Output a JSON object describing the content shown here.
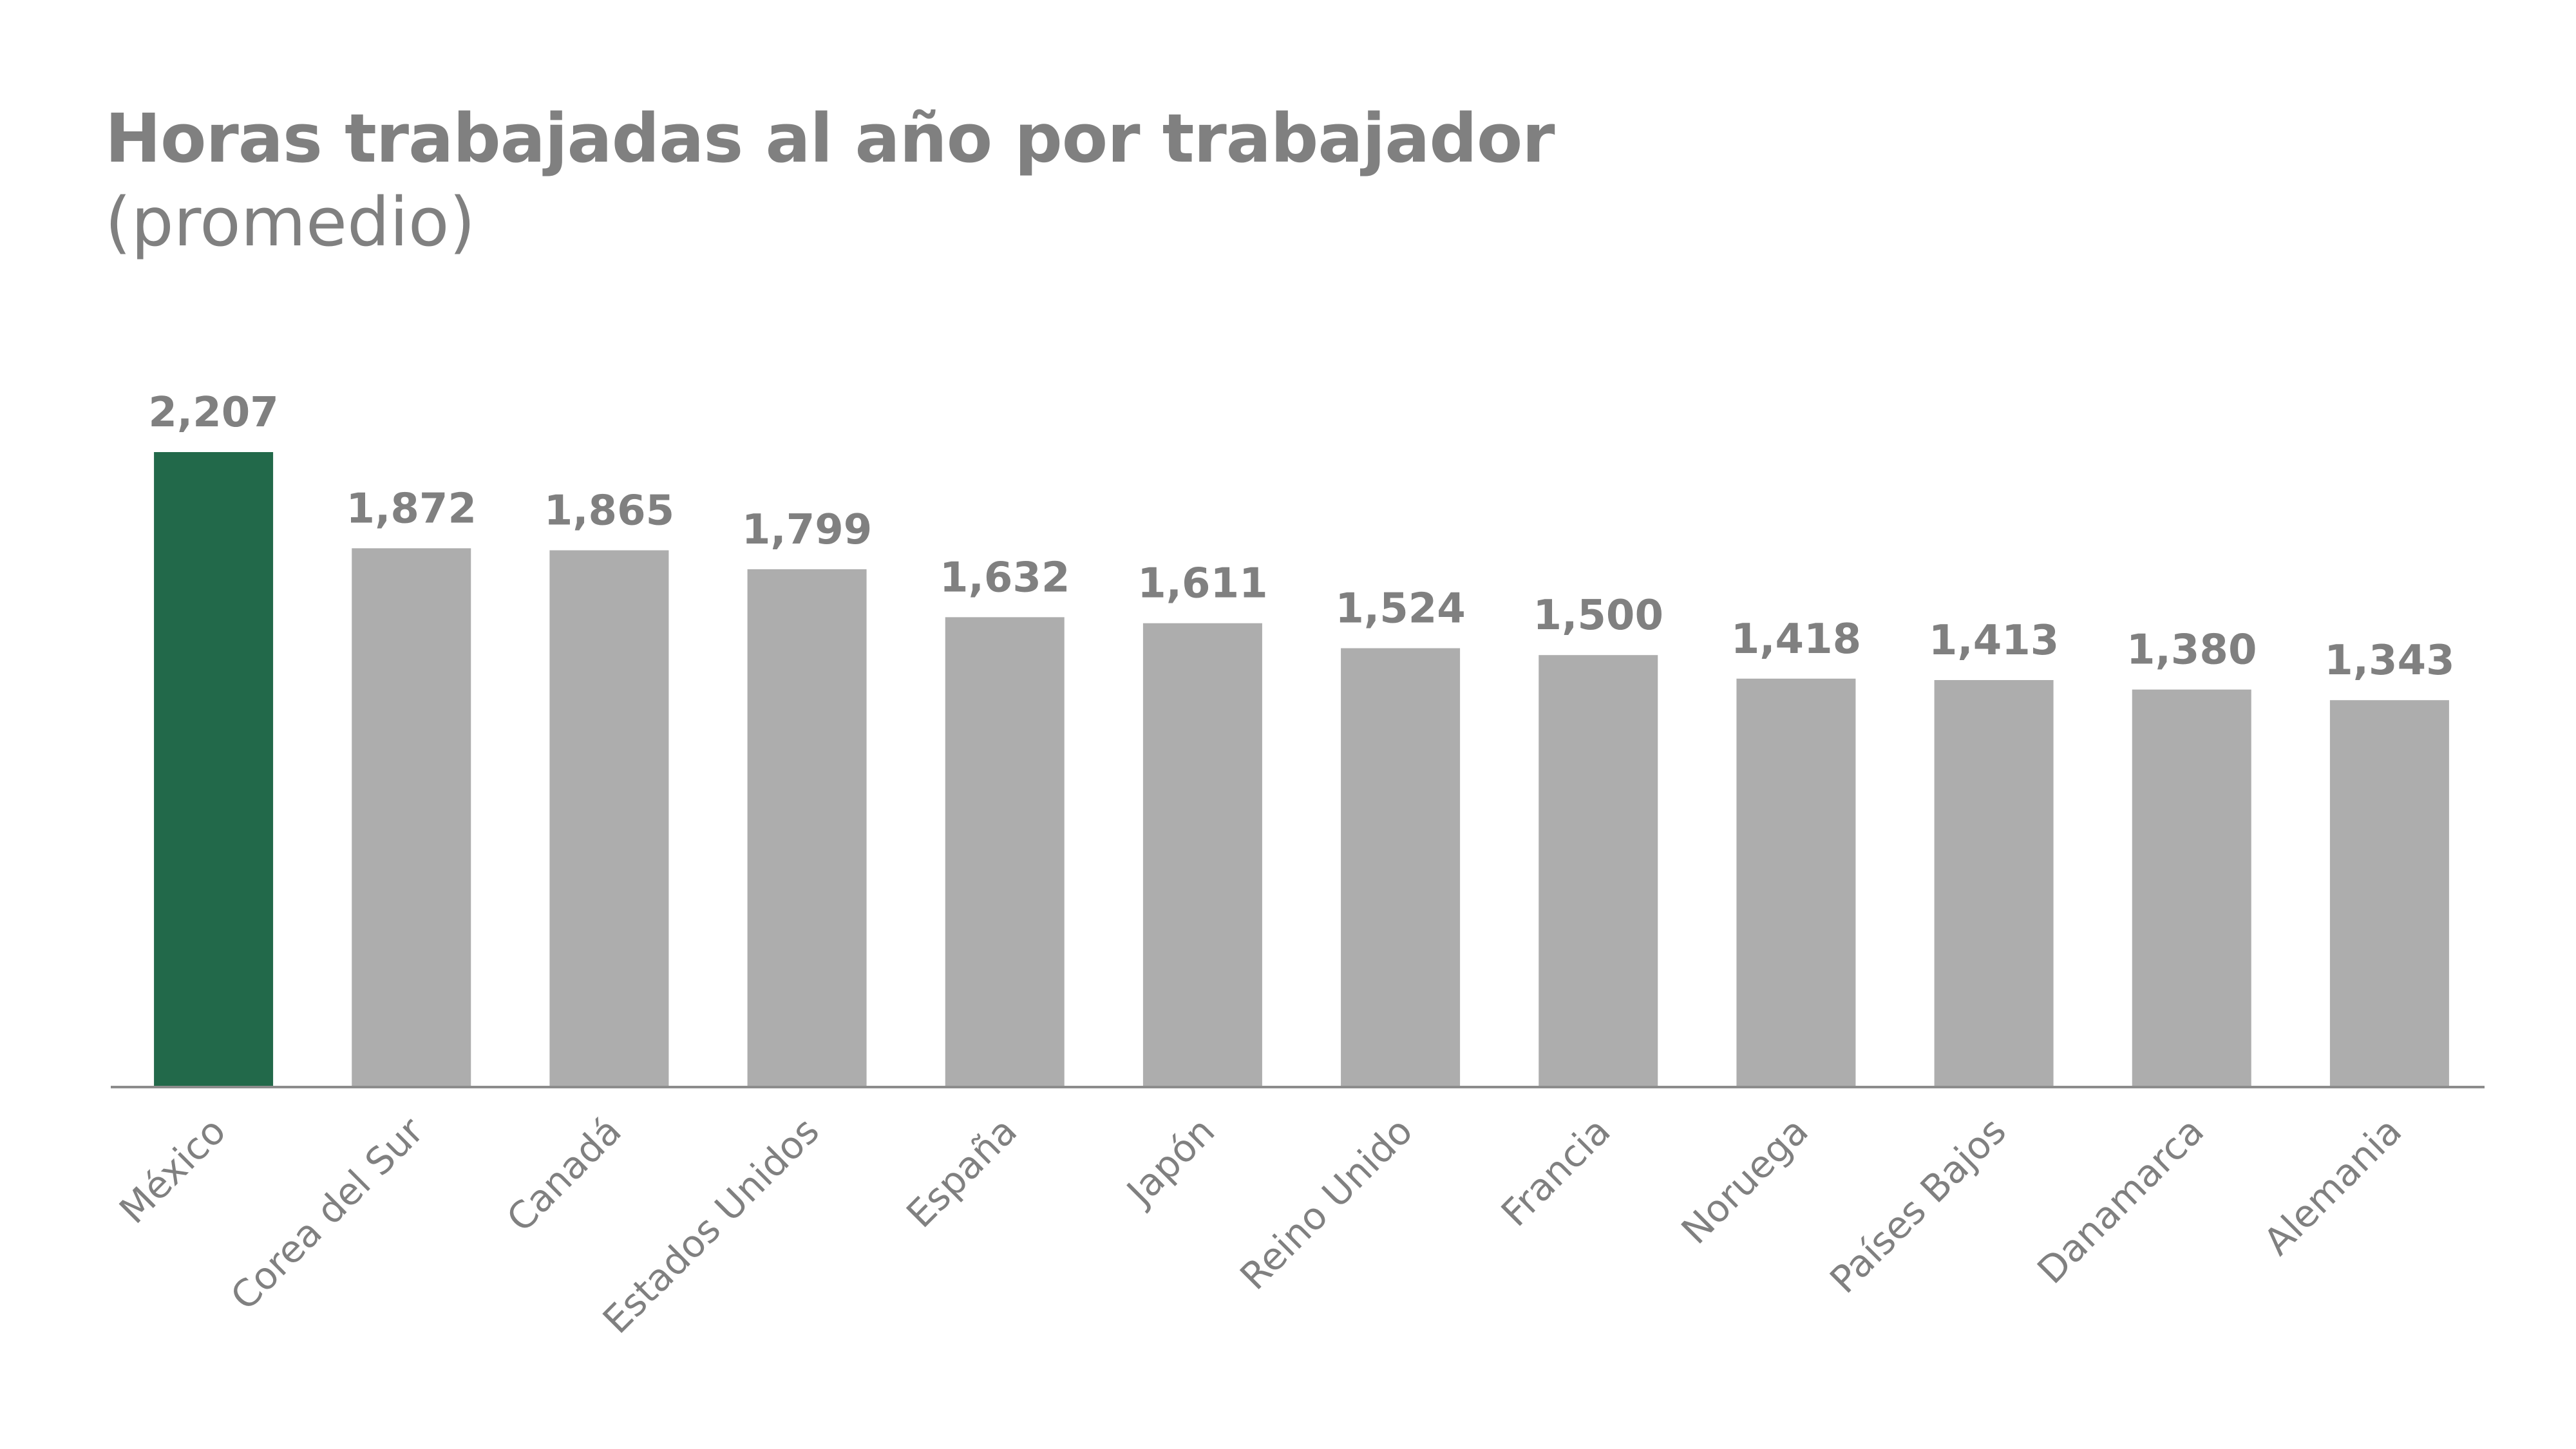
{
  "title": "Horas trabajadas al año por trabajador",
  "subtitle": "(promedio)",
  "colors": {
    "highlight": "#22694a",
    "bar": "#adadad",
    "axis": "#8c8c8c",
    "text": "#808080"
  },
  "chart_data": {
    "type": "bar",
    "title": "Horas trabajadas al año por trabajador",
    "subtitle": "(promedio)",
    "xlabel": "",
    "ylabel": "",
    "ylim": [
      0,
      2207
    ],
    "grid": false,
    "legend": "none",
    "highlight_index": 0,
    "categories": [
      "México",
      "Corea del Sur",
      "Canadá",
      "Estados Unidos",
      "España",
      "Japón",
      "Reino Unido",
      "Francia",
      "Noruega",
      "Países Bajos",
      "Danamarca",
      "Alemania"
    ],
    "values": [
      2207,
      1872,
      1865,
      1799,
      1632,
      1611,
      1524,
      1500,
      1418,
      1413,
      1380,
      1343
    ],
    "value_labels": [
      "2,207",
      "1,872",
      "1,865",
      "1,799",
      "1,632",
      "1,611",
      "1,524",
      "1,500",
      "1,418",
      "1,413",
      "1,380",
      "1,343"
    ]
  }
}
